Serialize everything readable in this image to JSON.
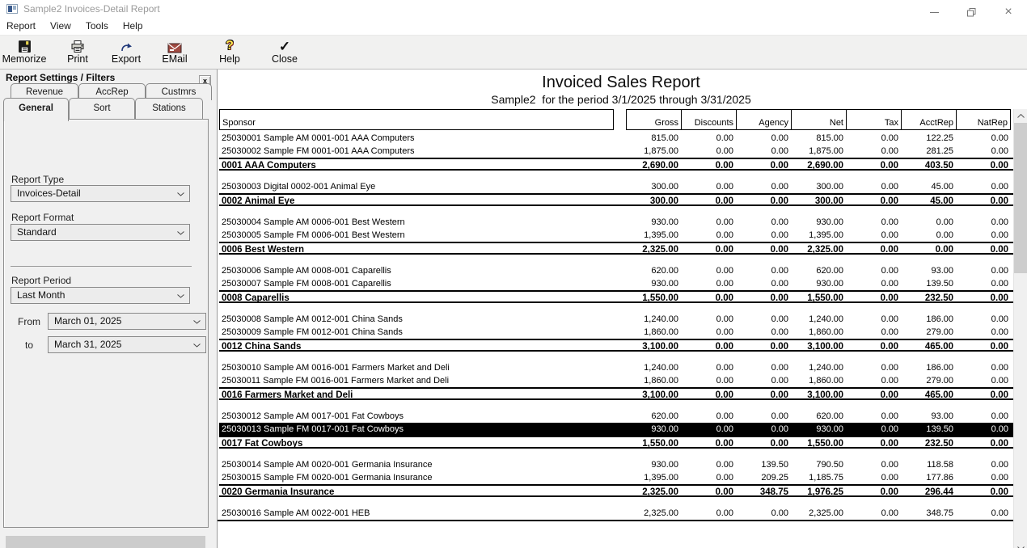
{
  "window": {
    "title": "Sample2 Invoices-Detail Report"
  },
  "icons": {
    "window_close": "×",
    "panel_close": "x",
    "help_qmark": "?",
    "close_check": "✓"
  },
  "menu": {
    "items": [
      "Report",
      "View",
      "Tools",
      "Help"
    ]
  },
  "toolbar": {
    "buttons": [
      {
        "label": "Memorize",
        "icon": "floppy-disk-icon"
      },
      {
        "label": "Print",
        "icon": "printer-icon"
      },
      {
        "label": "Export",
        "icon": "export-arrow-icon"
      },
      {
        "label": "EMail",
        "icon": "envelope-icon"
      },
      {
        "label": "Help",
        "icon": "question-mark-icon"
      },
      {
        "label": "Close",
        "icon": "checkmark-icon"
      }
    ]
  },
  "panel": {
    "title": "Report Settings / Filters",
    "tabs_row1": [
      "Revenue",
      "AccRep",
      "Custmrs"
    ],
    "tabs_row2": [
      "General",
      "Sort",
      "Stations"
    ],
    "active_tab": "General",
    "fields": {
      "report_type": {
        "label": "Report Type",
        "value": "Invoices-Detail"
      },
      "report_format": {
        "label": "Report Format",
        "value": "Standard"
      },
      "report_period": {
        "label": "Report Period",
        "value": "Last Month"
      },
      "from": {
        "label": "From",
        "value": "March 01, 2025"
      },
      "to": {
        "label": "to",
        "value": "March 31, 2025"
      }
    }
  },
  "report": {
    "title": "Invoiced Sales Report",
    "subtitle": "Sample2  for the period 3/1/2025 through 3/31/2025",
    "columns": [
      "Sponsor",
      "Gross",
      "Discounts",
      "Agency",
      "Net",
      "Tax",
      "AcctRep",
      "NatRep"
    ],
    "groups": [
      {
        "rows": [
          {
            "type": "detail",
            "sponsor": "25030001 Sample AM 0001-001 AAA Computers",
            "values": [
              "815.00",
              "0.00",
              "0.00",
              "815.00",
              "0.00",
              "122.25",
              "0.00"
            ]
          },
          {
            "type": "detail",
            "sponsor": "25030002 Sample FM 0001-001 AAA Computers",
            "values": [
              "1,875.00",
              "0.00",
              "0.00",
              "1,875.00",
              "0.00",
              "281.25",
              "0.00"
            ]
          },
          {
            "type": "total",
            "sponsor": "0001 AAA Computers",
            "values": [
              "2,690.00",
              "0.00",
              "0.00",
              "2,690.00",
              "0.00",
              "403.50",
              "0.00"
            ]
          }
        ]
      },
      {
        "rows": [
          {
            "type": "detail",
            "sponsor": "25030003 Digital 0002-001 Animal Eye",
            "values": [
              "300.00",
              "0.00",
              "0.00",
              "300.00",
              "0.00",
              "45.00",
              "0.00"
            ]
          },
          {
            "type": "total",
            "sponsor": "0002 Animal Eye",
            "values": [
              "300.00",
              "0.00",
              "0.00",
              "300.00",
              "0.00",
              "45.00",
              "0.00"
            ]
          }
        ]
      },
      {
        "rows": [
          {
            "type": "detail",
            "sponsor": "25030004 Sample AM 0006-001 Best Western",
            "values": [
              "930.00",
              "0.00",
              "0.00",
              "930.00",
              "0.00",
              "0.00",
              "0.00"
            ]
          },
          {
            "type": "detail",
            "sponsor": "25030005 Sample FM 0006-001 Best Western",
            "values": [
              "1,395.00",
              "0.00",
              "0.00",
              "1,395.00",
              "0.00",
              "0.00",
              "0.00"
            ]
          },
          {
            "type": "total",
            "sponsor": "0006 Best Western",
            "values": [
              "2,325.00",
              "0.00",
              "0.00",
              "2,325.00",
              "0.00",
              "0.00",
              "0.00"
            ]
          }
        ]
      },
      {
        "rows": [
          {
            "type": "detail",
            "sponsor": "25030006 Sample AM 0008-001 Caparellis",
            "values": [
              "620.00",
              "0.00",
              "0.00",
              "620.00",
              "0.00",
              "93.00",
              "0.00"
            ]
          },
          {
            "type": "detail",
            "sponsor": "25030007 Sample FM 0008-001 Caparellis",
            "values": [
              "930.00",
              "0.00",
              "0.00",
              "930.00",
              "0.00",
              "139.50",
              "0.00"
            ]
          },
          {
            "type": "total",
            "sponsor": "0008 Caparellis",
            "values": [
              "1,550.00",
              "0.00",
              "0.00",
              "1,550.00",
              "0.00",
              "232.50",
              "0.00"
            ]
          }
        ]
      },
      {
        "rows": [
          {
            "type": "detail",
            "sponsor": "25030008 Sample AM 0012-001 China Sands",
            "values": [
              "1,240.00",
              "0.00",
              "0.00",
              "1,240.00",
              "0.00",
              "186.00",
              "0.00"
            ]
          },
          {
            "type": "detail",
            "sponsor": "25030009 Sample FM 0012-001 China Sands",
            "values": [
              "1,860.00",
              "0.00",
              "0.00",
              "1,860.00",
              "0.00",
              "279.00",
              "0.00"
            ]
          },
          {
            "type": "total",
            "sponsor": "0012 China Sands",
            "values": [
              "3,100.00",
              "0.00",
              "0.00",
              "3,100.00",
              "0.00",
              "465.00",
              "0.00"
            ]
          }
        ]
      },
      {
        "rows": [
          {
            "type": "detail",
            "sponsor": "25030010 Sample AM 0016-001 Farmers Market and Deli",
            "values": [
              "1,240.00",
              "0.00",
              "0.00",
              "1,240.00",
              "0.00",
              "186.00",
              "0.00"
            ]
          },
          {
            "type": "detail",
            "sponsor": "25030011 Sample FM 0016-001 Farmers Market and Deli",
            "values": [
              "1,860.00",
              "0.00",
              "0.00",
              "1,860.00",
              "0.00",
              "279.00",
              "0.00"
            ]
          },
          {
            "type": "total",
            "sponsor": "0016 Farmers Market and Deli",
            "values": [
              "3,100.00",
              "0.00",
              "0.00",
              "3,100.00",
              "0.00",
              "465.00",
              "0.00"
            ]
          }
        ]
      },
      {
        "rows": [
          {
            "type": "detail",
            "sponsor": "25030012 Sample AM 0017-001 Fat Cowboys",
            "values": [
              "620.00",
              "0.00",
              "0.00",
              "620.00",
              "0.00",
              "93.00",
              "0.00"
            ]
          },
          {
            "type": "detail",
            "selected": true,
            "sponsor": "25030013 Sample FM 0017-001 Fat Cowboys",
            "values": [
              "930.00",
              "0.00",
              "0.00",
              "930.00",
              "0.00",
              "139.50",
              "0.00"
            ]
          },
          {
            "type": "total",
            "sponsor": "0017 Fat Cowboys",
            "values": [
              "1,550.00",
              "0.00",
              "0.00",
              "1,550.00",
              "0.00",
              "232.50",
              "0.00"
            ]
          }
        ]
      },
      {
        "rows": [
          {
            "type": "detail",
            "sponsor": "25030014 Sample AM 0020-001 Germania Insurance",
            "values": [
              "930.00",
              "0.00",
              "139.50",
              "790.50",
              "0.00",
              "118.58",
              "0.00"
            ]
          },
          {
            "type": "detail",
            "sponsor": "25030015 Sample FM 0020-001 Germania Insurance",
            "values": [
              "1,395.00",
              "0.00",
              "209.25",
              "1,185.75",
              "0.00",
              "177.86",
              "0.00"
            ]
          },
          {
            "type": "total",
            "sponsor": "0020 Germania Insurance",
            "values": [
              "2,325.00",
              "0.00",
              "348.75",
              "1,976.25",
              "0.00",
              "296.44",
              "0.00"
            ]
          }
        ]
      },
      {
        "rows": [
          {
            "type": "detail",
            "sponsor": "25030016 Sample AM 0022-001 HEB",
            "values": [
              "2,325.00",
              "0.00",
              "0.00",
              "2,325.00",
              "0.00",
              "348.75",
              "0.00"
            ]
          }
        ]
      }
    ]
  },
  "colors": {
    "toolbar_bg": "#f1f1f0",
    "panel_bg": "#f0f0f0",
    "selected_row_bg": "#000000",
    "selected_row_text": "#ffffff",
    "export_icon_blue": "#223a7a",
    "email_icon_red": "#a14b42",
    "help_icon_yellow": "#ffe94e"
  }
}
